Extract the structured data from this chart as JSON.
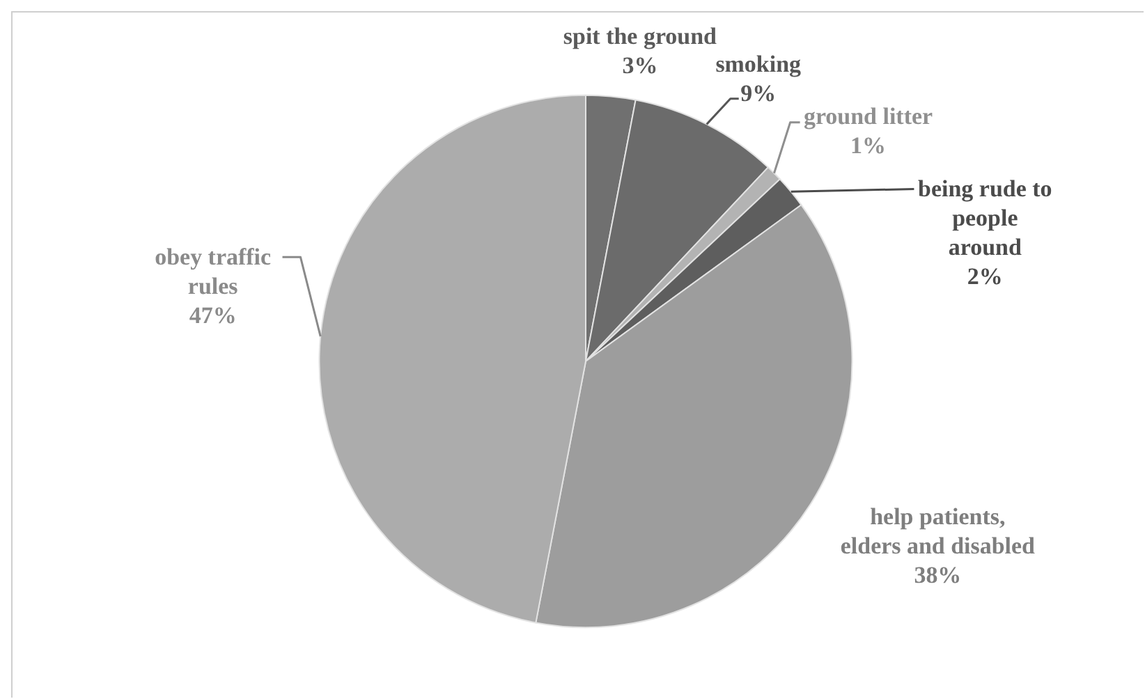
{
  "chart_data": {
    "type": "pie",
    "categories": [
      "spit the ground",
      "smoking",
      "ground litter",
      "being rude to people around",
      "help patients, elders and disabled",
      "obey traffic rules"
    ],
    "values": [
      3,
      9,
      1,
      2,
      38,
      47
    ],
    "colors": [
      "#707070",
      "#6b6b6b",
      "#b3b3b3",
      "#5e5e5e",
      "#9d9d9d",
      "#acacac"
    ],
    "value_labels": [
      "3%",
      "9%",
      "1%",
      "2%",
      "38%",
      "47%"
    ]
  }
}
